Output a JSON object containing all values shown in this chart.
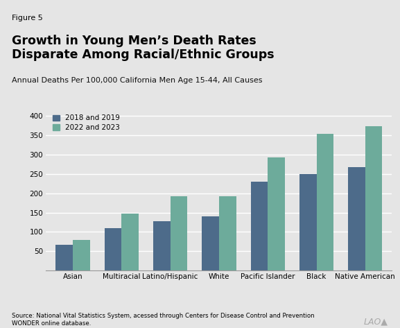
{
  "categories": [
    "Asian",
    "Multiracial",
    "Latino/Hispanic",
    "White",
    "Pacific Islander",
    "Black",
    "Native American"
  ],
  "values_2018_2019": [
    67,
    110,
    127,
    140,
    230,
    250,
    267
  ],
  "values_2022_2023": [
    80,
    148,
    193,
    192,
    293,
    353,
    373
  ],
  "color_2018_2019": "#4d6b8a",
  "color_2022_2023": "#6dab9b",
  "figure_label": "Figure 5",
  "title_line1": "Growth in Young Men’s Death Rates",
  "title_line2": "Disparate Among Racial/Ethnic Groups",
  "subtitle": "Annual Deaths Per 100,000 California Men Age 15-44, All Causes",
  "legend_label_1": "2018 and 2019",
  "legend_label_2": "2022 and 2023",
  "ylim": [
    0,
    420
  ],
  "yticks": [
    50,
    100,
    150,
    200,
    250,
    300,
    350,
    400
  ],
  "source_text": "Source: National Vital Statistics System, acessed through Centers for Disease Control and Prevention\nWONDER online database.",
  "background_color": "#e5e5e5",
  "plot_bg_color": "#e5e5e5",
  "bar_width": 0.35,
  "lao_text": "LAO▲"
}
